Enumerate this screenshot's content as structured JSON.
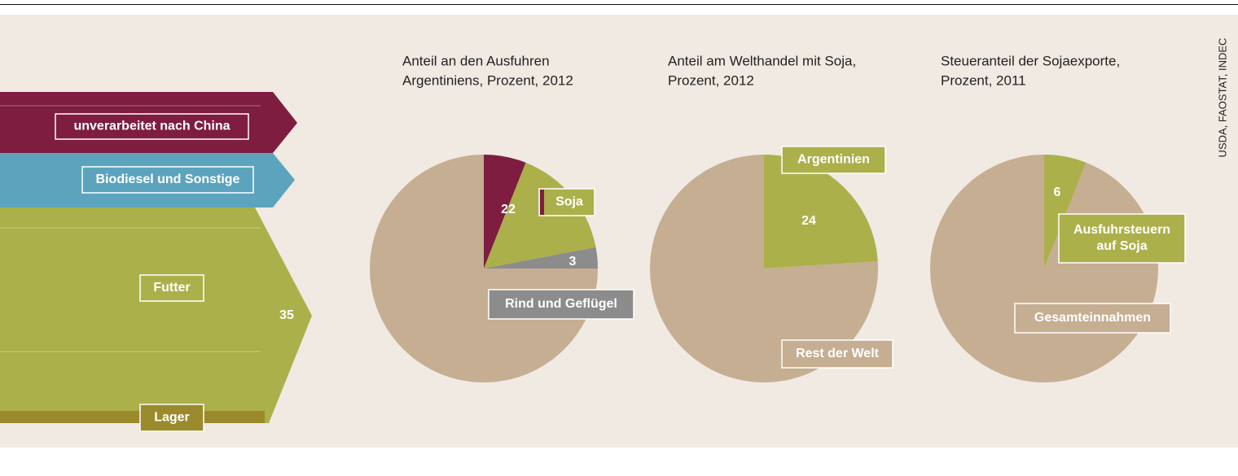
{
  "source": "USDA, FAOSTAT, INDEC",
  "chart_data": [
    {
      "type": "flow",
      "categories": [
        "unverarbeitet nach China",
        "Biodiesel und Sonstige",
        "Futter",
        "Lager"
      ],
      "colors": [
        "#7e1d40",
        "#5ca4bd",
        "#abb04a",
        "#9b8a2b"
      ],
      "annotation": 35
    },
    {
      "type": "pie",
      "title": [
        "Anteil an den Ausfuhren",
        "Argentiniens, Prozent, 2012"
      ],
      "slices": [
        {
          "label": [
            "Soja"
          ],
          "value": 22,
          "labeled": true,
          "parts": [
            {
              "value": 6,
              "color": "#7e1d40"
            },
            {
              "value": 16,
              "color": "#abb04a"
            }
          ]
        },
        {
          "label": [
            "Rind und Geflügel"
          ],
          "value": 3,
          "labeled": true,
          "color": "#8c8c8c"
        },
        {
          "value": 75,
          "color": "#c6ae93"
        }
      ]
    },
    {
      "type": "pie",
      "title": [
        "Anteil am Welthandel mit Soja,",
        "Prozent, 2012"
      ],
      "slices": [
        {
          "label": [
            "Argentinien"
          ],
          "value": 24,
          "labeled": true,
          "color": "#abb04a"
        },
        {
          "label": [
            "Rest der Welt"
          ],
          "value": 76,
          "color": "#c6ae93"
        }
      ]
    },
    {
      "type": "pie",
      "title": [
        "Steueranteil der Sojaexporte,",
        "Prozent, 2011"
      ],
      "slices": [
        {
          "label": [
            "Ausfuhrsteuern",
            "auf Soja"
          ],
          "value": 6,
          "labeled": true,
          "color": "#abb04a"
        },
        {
          "label": [
            "Gesamteinnahmen"
          ],
          "value": 94,
          "color": "#c6ae93"
        }
      ]
    }
  ]
}
